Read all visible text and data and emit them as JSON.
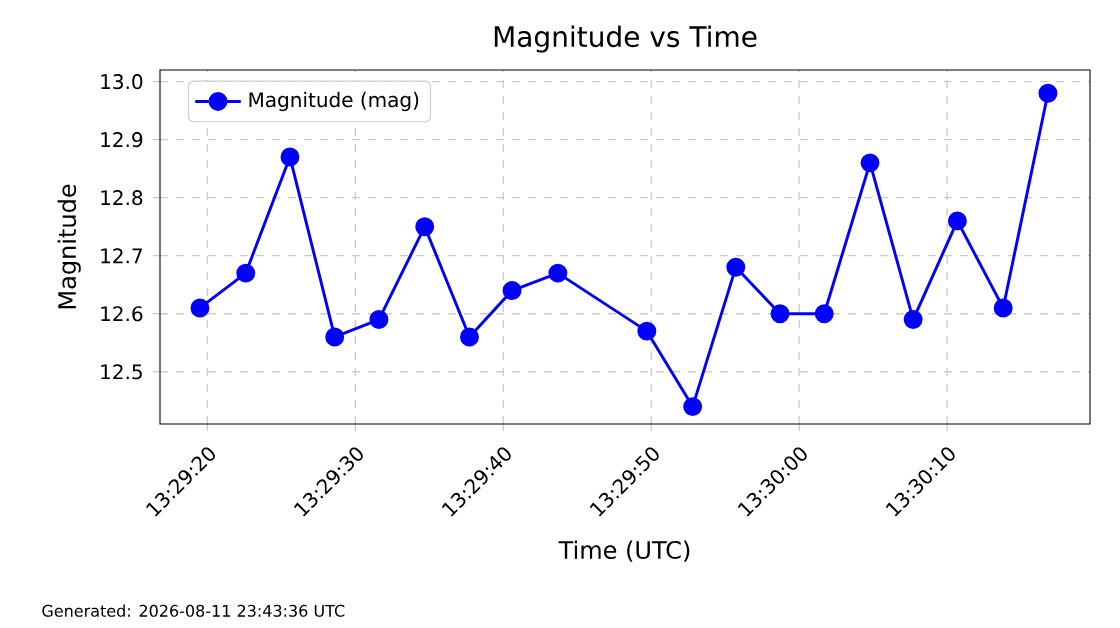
{
  "chart_data": {
    "type": "line",
    "title": "Magnitude vs Time",
    "xlabel": "Time (UTC)",
    "ylabel": "Magnitude",
    "x": [
      13.48875,
      13.48961,
      13.49044,
      13.49128,
      13.49211,
      13.49297,
      13.49381,
      13.49461,
      13.49547,
      13.49714,
      13.498,
      13.49881,
      13.49964,
      13.50047,
      13.50133,
      13.50214,
      13.50297,
      13.50383,
      13.50467
    ],
    "series": [
      {
        "name": "Magnitude (mag)",
        "color": "#0000ff",
        "values": [
          12.61,
          12.67,
          12.87,
          12.56,
          12.59,
          12.75,
          12.56,
          12.64,
          12.67,
          12.57,
          12.44,
          12.68,
          12.6,
          12.6,
          12.86,
          12.59,
          12.76,
          12.61,
          12.98
        ]
      }
    ],
    "xlim": [
      13.488,
      13.50546
    ],
    "ylim": [
      12.41,
      13.02
    ],
    "xticks": [
      {
        "value": 13.488889,
        "label": "13:29:20"
      },
      {
        "value": 13.491667,
        "label": "13:29:30"
      },
      {
        "value": 13.494444,
        "label": "13:29:40"
      },
      {
        "value": 13.497222,
        "label": "13:29:50"
      },
      {
        "value": 13.5,
        "label": "13:30:00"
      },
      {
        "value": 13.502778,
        "label": "13:30:10"
      }
    ],
    "yticks": [
      12.5,
      12.6,
      12.7,
      12.8,
      12.9,
      {
        "value": 13.0,
        "label": "13.0"
      }
    ],
    "grid": true,
    "legend": "top left",
    "marker": "circle",
    "line_style": "solid",
    "annotations": [
      "Generated: 2026-08-11 23:43:36 UTC"
    ]
  }
}
